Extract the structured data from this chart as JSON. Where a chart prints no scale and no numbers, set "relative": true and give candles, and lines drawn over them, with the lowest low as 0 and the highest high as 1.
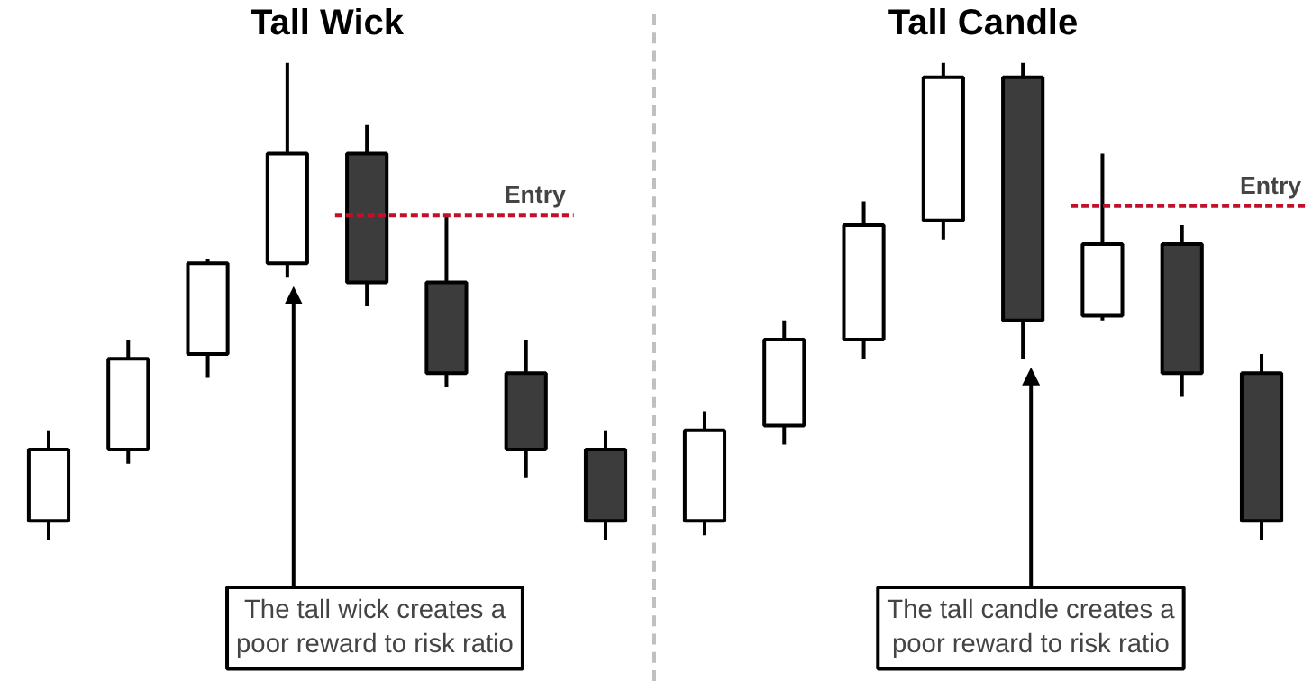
{
  "chart_data": [
    {
      "type": "candlestick",
      "title": "Tall Wick",
      "relative": true,
      "categories": [
        null,
        null,
        null,
        null,
        null,
        null,
        null,
        null
      ],
      "ohlc": [
        [
          0.04,
          0.23,
          0.0,
          0.19
        ],
        [
          0.19,
          0.42,
          0.16,
          0.38
        ],
        [
          0.39,
          0.59,
          0.34,
          0.58
        ],
        [
          0.58,
          1.0,
          0.55,
          0.81
        ],
        [
          0.81,
          0.87,
          0.49,
          0.54
        ],
        [
          0.54,
          0.68,
          0.32,
          0.35
        ],
        [
          0.35,
          0.42,
          0.13,
          0.19
        ],
        [
          0.19,
          0.23,
          0.0,
          0.04
        ]
      ],
      "colors": [
        "#ffffff",
        "#ffffff",
        "#ffffff",
        "#ffffff",
        "#3c3c3c",
        "#3c3c3c",
        "#3c3c3c",
        "#3c3c3c"
      ],
      "ref_lines": [
        {
          "axis": "y",
          "value": 0.68,
          "label": "Entry",
          "color": "#c0102a",
          "line_style": "dashed"
        }
      ],
      "annotations": [
        "The tall wick creates a\npoor reward to risk ratio"
      ]
    },
    {
      "type": "candlestick",
      "title": "Tall Candle",
      "relative": true,
      "categories": [
        null,
        null,
        null,
        null,
        null,
        null,
        null,
        null
      ],
      "ohlc": [
        [
          0.04,
          0.27,
          0.01,
          0.23
        ],
        [
          0.24,
          0.46,
          0.2,
          0.42
        ],
        [
          0.42,
          0.71,
          0.38,
          0.66
        ],
        [
          0.67,
          1.0,
          0.63,
          0.97
        ],
        [
          0.97,
          1.0,
          0.38,
          0.46
        ],
        [
          0.47,
          0.81,
          0.46,
          0.62
        ],
        [
          0.62,
          0.66,
          0.3,
          0.35
        ],
        [
          0.35,
          0.39,
          0.0,
          0.04
        ]
      ],
      "colors": [
        "#ffffff",
        "#ffffff",
        "#ffffff",
        "#ffffff",
        "#3c3c3c",
        "#ffffff",
        "#3c3c3c",
        "#3c3c3c"
      ],
      "ref_lines": [
        {
          "axis": "y",
          "value": 0.7,
          "label": "Entry",
          "color": "#c0102a",
          "line_style": "dashed"
        }
      ],
      "annotations": [
        "The tall candle creates a\npoor reward to risk ratio"
      ]
    }
  ]
}
